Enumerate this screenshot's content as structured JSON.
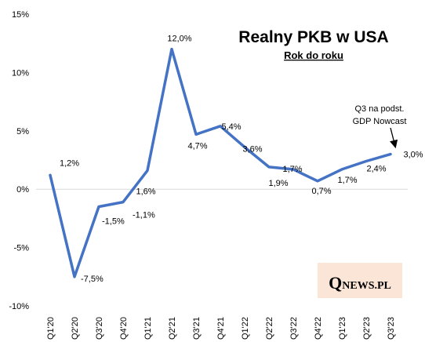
{
  "chart_data": {
    "type": "line",
    "title": "Realny PKB w USA",
    "subtitle": "Rok do roku",
    "categories": [
      "Q1'20",
      "Q2'20",
      "Q3'20",
      "Q4'20",
      "Q1'21",
      "Q2'21",
      "Q3'21",
      "Q4'21",
      "Q1'22",
      "Q2'22",
      "Q3'22",
      "Q4'22",
      "Q1'23",
      "Q2'23",
      "Q3'23"
    ],
    "series": [
      {
        "values": [
          1.2,
          -7.5,
          -1.5,
          -1.1,
          1.6,
          12.0,
          4.7,
          5.4,
          3.6,
          1.9,
          1.7,
          0.7,
          1.7,
          2.4,
          3.0
        ],
        "labels": [
          "1,2%",
          "-7,5%",
          "-1,5%",
          "-1,1%",
          "1,6%",
          "12,0%",
          "4,7%",
          "5,4%",
          "3,6%",
          "1,9%",
          "1,7%",
          "0,7%",
          "1,7%",
          "2,4%",
          "3,0%"
        ],
        "color": "#4472c4"
      }
    ],
    "ylim": [
      -10,
      15
    ],
    "yticks": [
      15,
      10,
      5,
      0,
      -5,
      -10
    ],
    "ytick_labels": [
      "15%",
      "10%",
      "5%",
      "0%",
      "-5%",
      "-10%"
    ],
    "grid": false,
    "annotation": {
      "lines": [
        "Q3 na podst.",
        "GDP Nowcast"
      ],
      "target_category": "Q3'23"
    }
  },
  "watermark": {
    "initial": "Q",
    "rest": "NEWS.PL",
    "background": "#fbe5d6"
  }
}
